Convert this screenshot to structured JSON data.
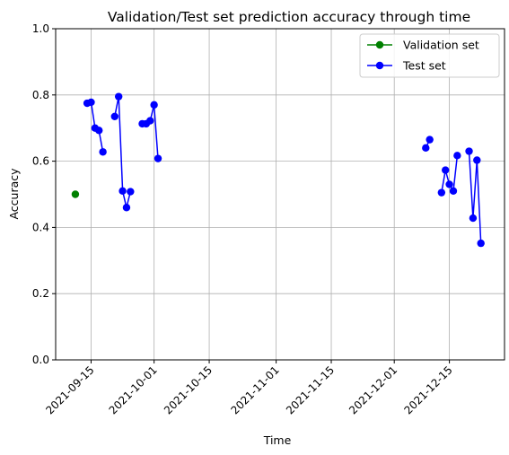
{
  "chart_data": {
    "type": "line",
    "title": "Validation/Test set prediction accuracy through time",
    "xlabel": "Time",
    "ylabel": "Accuracy",
    "ylim": [
      0,
      1
    ],
    "xlim": [
      "2021-09-06",
      "2021-12-29"
    ],
    "x_ticks": [
      "2021-09-15",
      "2021-10-01",
      "2021-10-15",
      "2021-11-01",
      "2021-11-15",
      "2021-12-01",
      "2021-12-15"
    ],
    "y_ticks": [
      0.0,
      0.2,
      0.4,
      0.6,
      0.8,
      1.0
    ],
    "y_tick_labels": [
      "0.0",
      "0.2",
      "0.4",
      "0.6",
      "0.8",
      "1.0"
    ],
    "grid": true,
    "legend_position": "top-right",
    "series": [
      {
        "name": "Validation set",
        "color": "#008000",
        "points": [
          {
            "x": "2021-09-11",
            "y": 0.5
          }
        ]
      },
      {
        "name": "Test set",
        "color": "#0000ff",
        "segments": [
          [
            {
              "x": "2021-09-14",
              "y": 0.775
            },
            {
              "x": "2021-09-15",
              "y": 0.778
            },
            {
              "x": "2021-09-16",
              "y": 0.7
            },
            {
              "x": "2021-09-17",
              "y": 0.693
            },
            {
              "x": "2021-09-18",
              "y": 0.628
            }
          ],
          [
            {
              "x": "2021-09-21",
              "y": 0.735
            },
            {
              "x": "2021-09-22",
              "y": 0.795
            },
            {
              "x": "2021-09-23",
              "y": 0.51
            },
            {
              "x": "2021-09-24",
              "y": 0.46
            },
            {
              "x": "2021-09-25",
              "y": 0.508
            }
          ],
          [
            {
              "x": "2021-09-28",
              "y": 0.713
            },
            {
              "x": "2021-09-29",
              "y": 0.713
            },
            {
              "x": "2021-09-30",
              "y": 0.722
            },
            {
              "x": "2021-10-01",
              "y": 0.77
            },
            {
              "x": "2021-10-02",
              "y": 0.608
            }
          ],
          [
            {
              "x": "2021-12-09",
              "y": 0.64
            },
            {
              "x": "2021-12-10",
              "y": 0.665
            }
          ],
          [
            {
              "x": "2021-12-13",
              "y": 0.505
            },
            {
              "x": "2021-12-14",
              "y": 0.573
            },
            {
              "x": "2021-12-15",
              "y": 0.53
            },
            {
              "x": "2021-12-16",
              "y": 0.51
            },
            {
              "x": "2021-12-17",
              "y": 0.617
            }
          ],
          [
            {
              "x": "2021-12-20",
              "y": 0.63
            },
            {
              "x": "2021-12-21",
              "y": 0.428
            },
            {
              "x": "2021-12-22",
              "y": 0.603
            },
            {
              "x": "2021-12-23",
              "y": 0.352
            }
          ]
        ]
      }
    ]
  }
}
